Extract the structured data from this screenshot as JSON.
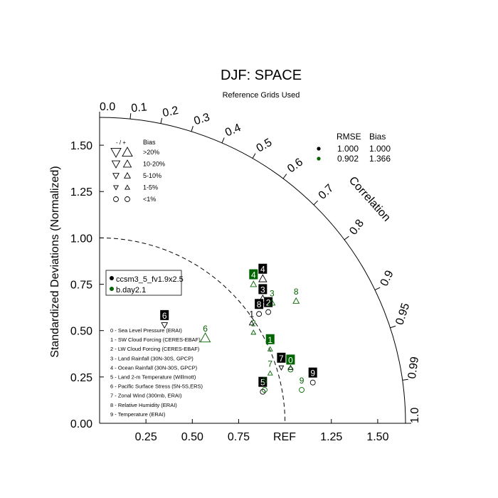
{
  "chart_data": {
    "type": "scatter",
    "diagram": "taylor",
    "title": "DJF: SPACE",
    "subtitle": "Reference Grids Used",
    "ylabel": "Standardized Deviations (Normalized)",
    "arc_label": "Correlation",
    "ref_label": "REF",
    "std_range": [
      0,
      1.65
    ],
    "ref_std": 1.0,
    "y_ticks": [
      "0.00",
      "0.25",
      "0.50",
      "0.75",
      "1.00",
      "1.25",
      "1.50"
    ],
    "x_ticks": [
      "0.25",
      "0.50",
      "0.75",
      "1.25",
      "1.50"
    ],
    "corr_ticks": [
      "0.0",
      "0.1",
      "0.2",
      "0.3",
      "0.4",
      "0.5",
      "0.6",
      "0.7",
      "0.8",
      "0.9",
      "0.95",
      "0.99",
      "1.0"
    ],
    "corr_values": [
      0.0,
      0.1,
      0.2,
      0.3,
      0.4,
      0.5,
      0.6,
      0.7,
      0.8,
      0.9,
      0.95,
      0.99,
      1.0
    ],
    "bias_legend": {
      "header_sign": "- / +",
      "header_bias": "Bias",
      "rows": [
        ">20%",
        "10-20%",
        "5-10%",
        "1-5%",
        "<1%"
      ]
    },
    "stats": {
      "header_rmse": "RMSE",
      "header_bias": "Bias",
      "rows": [
        {
          "color": "#000000",
          "rmse": "1.000",
          "bias": "1.000"
        },
        {
          "color": "#006400",
          "rmse": "0.902",
          "bias": "1.366"
        }
      ]
    },
    "series": [
      {
        "name": "ccsm3_5_fv1.9x2.5",
        "color": "#000000",
        "points": [
          {
            "id": "0",
            "x": 1.03,
            "y": 0.3,
            "bias": "up",
            "size": 1
          },
          {
            "id": "1",
            "x": 0.82,
            "y": 0.54,
            "bias": "up",
            "size": 1
          },
          {
            "id": "2",
            "x": 0.91,
            "y": 0.6,
            "bias": "circle",
            "size": 0
          },
          {
            "id": "3",
            "x": 0.88,
            "y": 0.67,
            "bias": "up",
            "size": 3
          },
          {
            "id": "4",
            "x": 0.88,
            "y": 0.78,
            "bias": "up",
            "size": 3
          },
          {
            "id": "5",
            "x": 0.88,
            "y": 0.17,
            "bias": "circle",
            "size": 0
          },
          {
            "id": "6",
            "x": 0.35,
            "y": 0.53,
            "bias": "down",
            "size": 2
          },
          {
            "id": "7",
            "x": 0.98,
            "y": 0.3,
            "bias": "down",
            "size": 1
          },
          {
            "id": "8",
            "x": 0.86,
            "y": 0.59,
            "bias": "circle",
            "size": 0
          },
          {
            "id": "9",
            "x": 1.15,
            "y": 0.22,
            "bias": "circle",
            "size": 0
          }
        ]
      },
      {
        "name": "b.day2.1",
        "color": "#006400",
        "points": [
          {
            "id": "0",
            "x": 1.03,
            "y": 0.29,
            "bias": "circle",
            "size": 0
          },
          {
            "id": "1",
            "x": 0.92,
            "y": 0.4,
            "bias": "up",
            "size": 1
          },
          {
            "id": "2",
            "x": 0.83,
            "y": 0.49,
            "bias": "up",
            "size": 1
          },
          {
            "id": "3",
            "x": 0.93,
            "y": 0.65,
            "bias": "up",
            "size": 2
          },
          {
            "id": "4",
            "x": 0.83,
            "y": 0.75,
            "bias": "up",
            "size": 2
          },
          {
            "id": "5",
            "x": 0.89,
            "y": 0.18,
            "bias": "circle",
            "size": 0
          },
          {
            "id": "6",
            "x": 0.57,
            "y": 0.46,
            "bias": "up",
            "size": 4
          },
          {
            "id": "7",
            "x": 0.92,
            "y": 0.27,
            "bias": "up",
            "size": 1
          },
          {
            "id": "8",
            "x": 1.06,
            "y": 0.66,
            "bias": "up",
            "size": 2
          },
          {
            "id": "9",
            "x": 1.09,
            "y": 0.18,
            "bias": "circle",
            "size": 0
          }
        ]
      }
    ],
    "variables": [
      "0 - Sea Level Pressure (ERAI)",
      "1 - SW Cloud Forcing (CERES-EBAF)",
      "2 - LW Cloud Forcing (CERES-EBAF)",
      "3 - Land Rainfall (30N-30S, GPCP)",
      "4 - Ocean Rainfall (30N-30S, GPCP)",
      "5 - Land 2-m Temperature (Willmott)",
      "6 - Pacific Surface Stress (5N-5S,ERS)",
      "7 - Zonal Wind (300mb, ERAI)",
      "8 - Relative Humidity (ERAI)",
      "9 - Temperature (ERAI)"
    ]
  }
}
